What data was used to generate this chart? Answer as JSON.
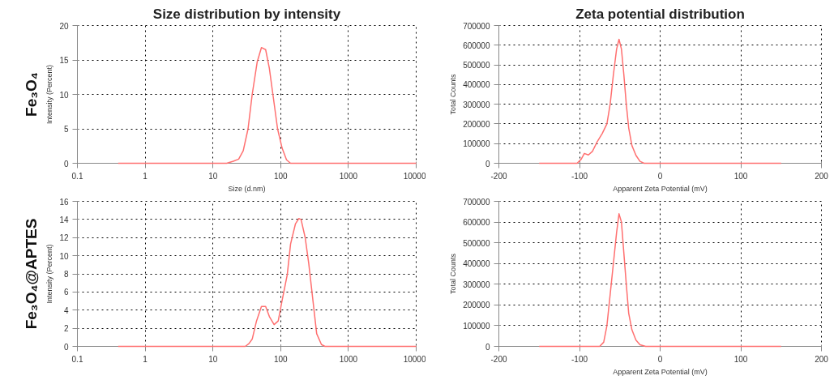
{
  "chart_data": [
    {
      "type": "line",
      "title": "Size distribution by intensity",
      "annotations": [
        "Fe₃O₄"
      ],
      "xlabel": "Size (d.nm)",
      "ylabel": "Intensity (Percent)",
      "log": "x",
      "xlim": [
        0.1,
        10000
      ],
      "xticks": [
        0.1,
        1,
        10,
        100,
        1000,
        10000
      ],
      "ylim": [
        0,
        20
      ],
      "yticks": [
        0,
        5,
        10,
        15,
        20
      ],
      "grid": true,
      "line_style": "solid",
      "series": [
        {
          "color": "#ff7070",
          "x": [
            0.4,
            16,
            20,
            24,
            28,
            33,
            38,
            45,
            52,
            60,
            68,
            78,
            90,
            105,
            122,
            140,
            10000
          ],
          "values": [
            0,
            0,
            0.3,
            0.6,
            1.8,
            5,
            10,
            14.7,
            16.8,
            16.5,
            13.8,
            9.5,
            5,
            2.2,
            0.5,
            0,
            0
          ]
        }
      ]
    },
    {
      "type": "line",
      "title": "Zeta potential distribution",
      "xlabel": "Apparent Zeta Potential (mV)",
      "ylabel": "Total Counts",
      "xlim": [
        -200,
        200
      ],
      "xticks": [
        -200,
        -100,
        0,
        100,
        200
      ],
      "ylim": [
        0,
        700000
      ],
      "yticks": [
        0,
        100000,
        200000,
        300000,
        400000,
        500000,
        600000,
        700000
      ],
      "grid": true,
      "line_style": "solid",
      "series": [
        {
          "color": "#ff7070",
          "x": [
            -150,
            -103,
            -98,
            -94,
            -89,
            -84,
            -78,
            -72,
            -66,
            -62,
            -58,
            -54,
            -51,
            -48,
            -45,
            -42,
            -39,
            -35,
            -30,
            -25,
            -20,
            150
          ],
          "values": [
            0,
            0,
            20000,
            50000,
            42000,
            60000,
            110000,
            150000,
            200000,
            300000,
            450000,
            580000,
            630000,
            580000,
            450000,
            300000,
            180000,
            90000,
            40000,
            10000,
            0,
            0
          ]
        }
      ]
    },
    {
      "type": "line",
      "annotations": [
        "Fe₃O₄@APTES"
      ],
      "ylabel": "Intensity (Percent)",
      "log": "x",
      "xlim": [
        0.1,
        10000
      ],
      "xticks": [
        0.1,
        1,
        10,
        100,
        1000,
        10000
      ],
      "ylim": [
        0,
        16
      ],
      "yticks": [
        0,
        2,
        4,
        6,
        8,
        10,
        12,
        14,
        16
      ],
      "grid": true,
      "line_style": "solid",
      "series": [
        {
          "color": "#ff7070",
          "x": [
            0.4,
            30,
            34,
            38,
            44,
            52,
            60,
            68,
            80,
            92,
            104,
            125,
            140,
            165,
            185,
            200,
            230,
            260,
            300,
            340,
            400,
            450,
            10000
          ],
          "values": [
            0,
            0,
            0.3,
            0.8,
            2.8,
            4.4,
            4.4,
            3.3,
            2.4,
            2.8,
            4.9,
            7.9,
            11.3,
            13.5,
            14.1,
            14,
            12,
            9.1,
            5,
            1.4,
            0.2,
            0,
            0
          ]
        }
      ]
    },
    {
      "type": "line",
      "xlabel": "Apparent Zeta Potential (mV)",
      "ylabel": "Total Counts",
      "xlim": [
        -200,
        200
      ],
      "xticks": [
        -200,
        -100,
        0,
        100,
        200
      ],
      "ylim": [
        0,
        700000
      ],
      "yticks": [
        0,
        100000,
        200000,
        300000,
        400000,
        500000,
        600000,
        700000
      ],
      "grid": true,
      "line_style": "solid",
      "series": [
        {
          "color": "#ff7070",
          "x": [
            -150,
            -75,
            -70,
            -66,
            -62,
            -58,
            -54,
            -51,
            -48,
            -45,
            -42,
            -39,
            -35,
            -30,
            -25,
            -18,
            150
          ],
          "values": [
            0,
            0,
            20000,
            100000,
            250000,
            400000,
            550000,
            640000,
            600000,
            450000,
            300000,
            160000,
            80000,
            30000,
            8000,
            0,
            0
          ]
        }
      ]
    }
  ]
}
